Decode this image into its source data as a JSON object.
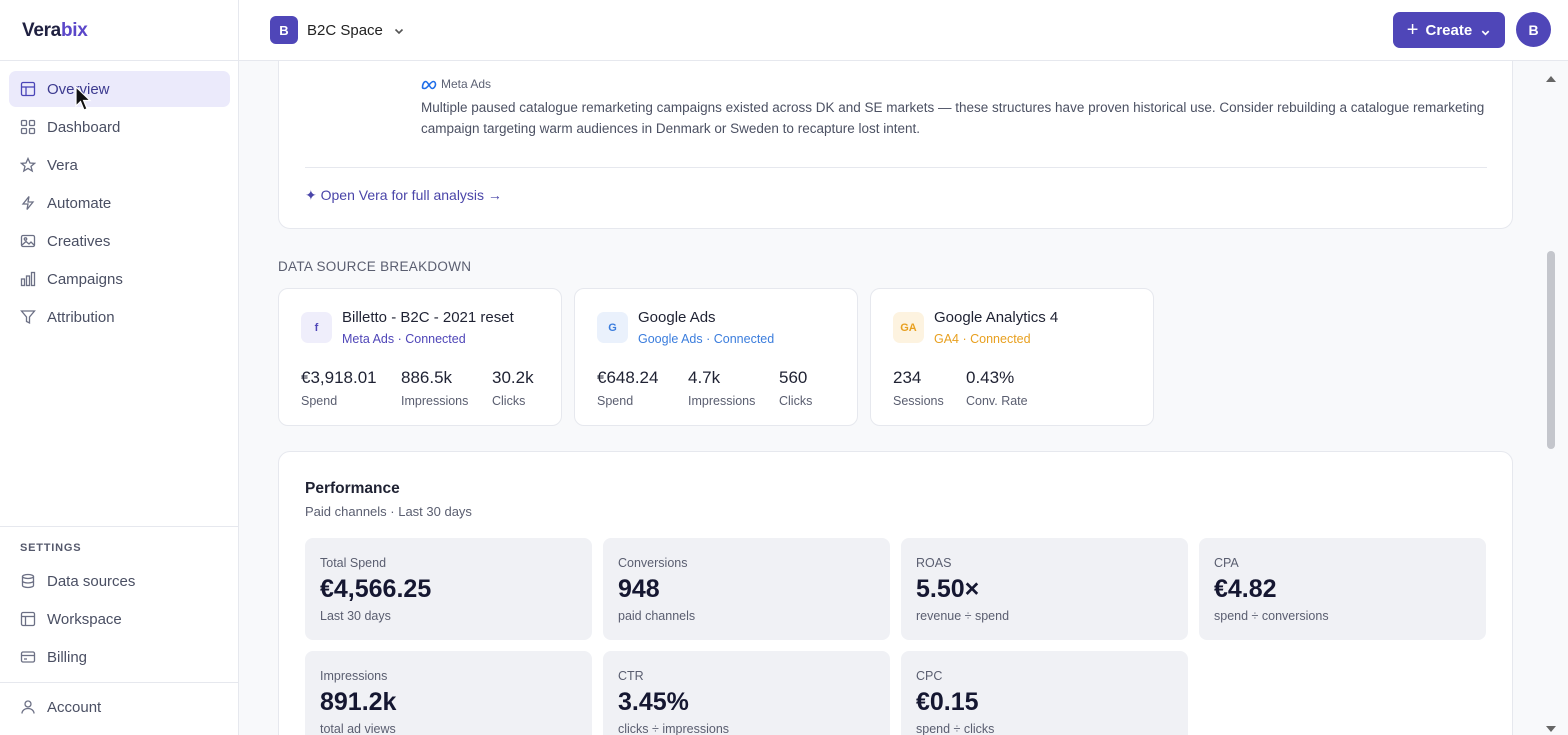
{
  "app": {
    "logo_part1": "Vera",
    "logo_part2": "bix"
  },
  "sidebar": {
    "items": [
      {
        "label": "Overview",
        "icon": "layout-icon"
      },
      {
        "label": "Dashboard",
        "icon": "grid-icon"
      },
      {
        "label": "Vera",
        "icon": "star-icon"
      },
      {
        "label": "Automate",
        "icon": "bolt-icon"
      },
      {
        "label": "Creatives",
        "icon": "image-icon"
      },
      {
        "label": "Campaigns",
        "icon": "bar-chart-icon"
      },
      {
        "label": "Attribution",
        "icon": "filter-icon"
      }
    ],
    "settings_label": "SETTINGS",
    "settings_items": [
      {
        "label": "Data sources",
        "icon": "database-icon"
      },
      {
        "label": "Workspace",
        "icon": "workspace-icon"
      },
      {
        "label": "Billing",
        "icon": "card-icon"
      }
    ],
    "account_label": "Account"
  },
  "header": {
    "workspace_initial": "B",
    "workspace_name": "B2C Space",
    "create_label": "Create",
    "avatar_initial": "B"
  },
  "insight": {
    "source": "Meta Ads",
    "text": "Multiple paused catalogue remarketing campaigns existed across DK and SE markets — these structures have proven historical use. Consider rebuilding a catalogue remarketing campaign targeting warm audiences in Denmark or Sweden to recapture lost intent.",
    "open_vera": "✦ Open Vera for full analysis →"
  },
  "data_sources": {
    "title": "DATA SOURCE BREAKDOWN",
    "cards": [
      {
        "icon_text": "f",
        "name": "Billetto - B2C - 2021 reset",
        "subtitle": "Meta Ads · Connected",
        "accent": "#4f46b8",
        "metrics": [
          {
            "value": "€3,918.01",
            "label": "Spend"
          },
          {
            "value": "886.5k",
            "label": "Impressions"
          },
          {
            "value": "30.2k",
            "label": "Clicks"
          }
        ]
      },
      {
        "icon_text": "G",
        "name": "Google Ads",
        "subtitle": "Google Ads · Connected",
        "accent": "#3b7ddd",
        "metrics": [
          {
            "value": "€648.24",
            "label": "Spend"
          },
          {
            "value": "4.7k",
            "label": "Impressions"
          },
          {
            "value": "560",
            "label": "Clicks"
          }
        ]
      },
      {
        "icon_text": "GA",
        "name": "Google Analytics 4",
        "subtitle": "GA4 · Connected",
        "accent": "#e8a020",
        "metrics": [
          {
            "value": "234",
            "label": "Sessions"
          },
          {
            "value": "0.43%",
            "label": "Conv. Rate"
          }
        ]
      }
    ]
  },
  "performance": {
    "title": "Performance",
    "subtitle": "Paid channels · Last 30 days",
    "kpis": [
      {
        "label": "Total Spend",
        "value": "€4,566.25",
        "sub": "Last 30 days"
      },
      {
        "label": "Conversions",
        "value": "948",
        "sub": "paid channels"
      },
      {
        "label": "ROAS",
        "value": "5.50×",
        "sub": "revenue ÷ spend"
      },
      {
        "label": "CPA",
        "value": "€4.82",
        "sub": "spend ÷ conversions"
      },
      {
        "label": "Impressions",
        "value": "891.2k",
        "sub": "total ad views"
      },
      {
        "label": "CTR",
        "value": "3.45%",
        "sub": "clicks ÷ impressions"
      },
      {
        "label": "CPC",
        "value": "€0.15",
        "sub": "spend ÷ clicks"
      }
    ]
  }
}
